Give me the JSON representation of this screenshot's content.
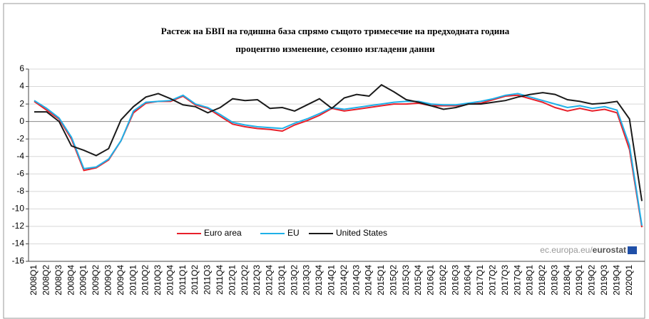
{
  "chart_data": {
    "type": "line",
    "title": "Растеж на БВП на годишна база спрямо същото тримесечие на предходната година",
    "subtitle": "процентно изменение, сезонно изгладени данни",
    "categories": [
      "2008Q1",
      "2008Q2",
      "2008Q3",
      "2008Q4",
      "2009Q1",
      "2009Q2",
      "2009Q3",
      "2009Q4",
      "2010Q1",
      "2010Q2",
      "2010Q3",
      "2010Q4",
      "2011Q1",
      "2011Q2",
      "2011Q3",
      "2011Q4",
      "2012Q1",
      "2012Q2",
      "2012Q3",
      "2012Q4",
      "2013Q1",
      "2013Q2",
      "2013Q3",
      "2013Q4",
      "2014Q1",
      "2014Q2",
      "2014Q3",
      "2014Q4",
      "2015Q1",
      "2015Q2",
      "2015Q3",
      "2015Q4",
      "2016Q1",
      "2016Q2",
      "2016Q3",
      "2016Q4",
      "2017Q1",
      "2017Q2",
      "2017Q3",
      "2017Q4",
      "2018Q1",
      "2018Q2",
      "2018Q3",
      "2018Q4",
      "2019Q1",
      "2019Q2",
      "2019Q3",
      "2019Q4",
      "2020Q1",
      null
    ],
    "series": [
      {
        "name": "Euro area",
        "color": "#e8202a",
        "values": [
          2.3,
          1.3,
          0.3,
          -2.0,
          -5.6,
          -5.3,
          -4.4,
          -2.2,
          1.0,
          2.1,
          2.3,
          2.3,
          2.9,
          1.9,
          1.5,
          0.6,
          -0.3,
          -0.6,
          -0.8,
          -0.9,
          -1.1,
          -0.4,
          0.1,
          0.7,
          1.5,
          1.2,
          1.4,
          1.6,
          1.8,
          2.0,
          2.0,
          2.1,
          1.8,
          1.8,
          1.8,
          2.0,
          2.1,
          2.5,
          2.9,
          3.0,
          2.6,
          2.2,
          1.6,
          1.2,
          1.5,
          1.2,
          1.4,
          1.0,
          -3.2,
          -12.1
        ]
      },
      {
        "name": "EU",
        "color": "#1fb0e8",
        "values": [
          2.4,
          1.5,
          0.4,
          -1.8,
          -5.4,
          -5.2,
          -4.3,
          -2.2,
          1.2,
          2.2,
          2.3,
          2.4,
          3.0,
          2.0,
          1.6,
          0.8,
          -0.1,
          -0.4,
          -0.6,
          -0.7,
          -0.8,
          -0.2,
          0.3,
          0.9,
          1.6,
          1.4,
          1.6,
          1.8,
          2.0,
          2.2,
          2.3,
          2.3,
          2.0,
          1.9,
          1.9,
          2.1,
          2.3,
          2.6,
          3.0,
          3.2,
          2.8,
          2.4,
          2.0,
          1.6,
          1.8,
          1.5,
          1.7,
          1.3,
          -2.7,
          -11.9
        ]
      },
      {
        "name": "United States",
        "color": "#1a1a1a",
        "values": [
          1.1,
          1.1,
          0.0,
          -2.8,
          -3.3,
          -3.9,
          -3.1,
          0.2,
          1.7,
          2.8,
          3.2,
          2.6,
          1.9,
          1.7,
          1.0,
          1.6,
          2.6,
          2.4,
          2.5,
          1.5,
          1.6,
          1.2,
          1.9,
          2.6,
          1.5,
          2.7,
          3.1,
          2.9,
          4.2,
          3.4,
          2.5,
          2.2,
          1.8,
          1.4,
          1.6,
          2.0,
          2.0,
          2.2,
          2.4,
          2.8,
          3.1,
          3.3,
          3.1,
          2.5,
          2.3,
          2.0,
          2.1,
          2.3,
          0.3,
          -9.1
        ]
      }
    ],
    "ylim": [
      -16,
      6
    ],
    "yticks": [
      -16,
      -14,
      -12,
      -10,
      -8,
      -6,
      -4,
      -2,
      0,
      2,
      4,
      6
    ],
    "grid": true,
    "legend": "bottom",
    "source": [
      "ec.europa.eu/",
      "eurostat"
    ]
  }
}
